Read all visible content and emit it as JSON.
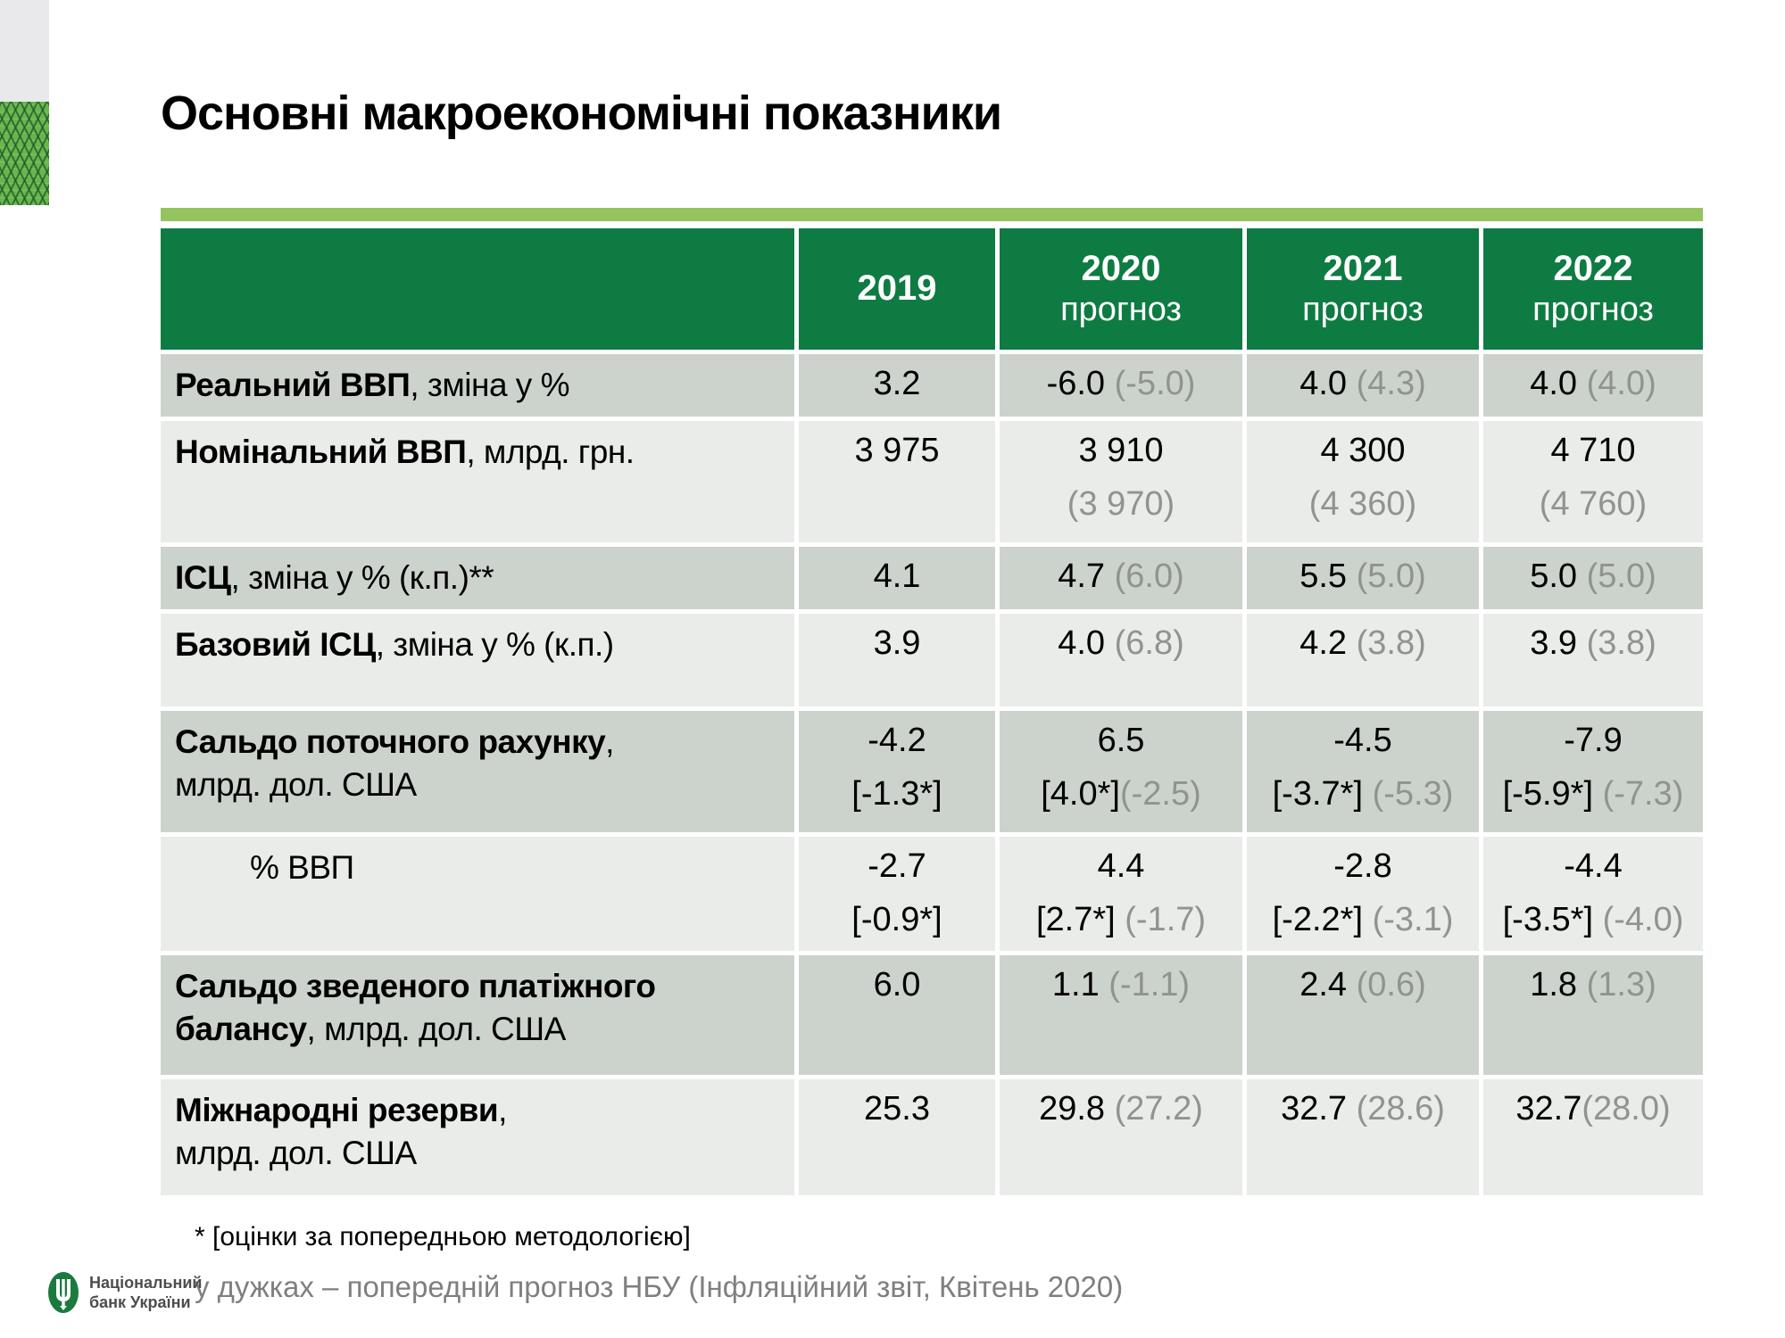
{
  "title": "Основні макроекономічні показники",
  "colors": {
    "header_bg": "#0e7b43",
    "accent_bar": "#95c45f",
    "row_dark": "#ccd3cc",
    "row_light": "#e9ece8",
    "muted_value": "#8f948f",
    "footnote_gray": "#7f7f7f",
    "logo_green": "#1b7a3e"
  },
  "table": {
    "columns": [
      {
        "year": "",
        "sub": ""
      },
      {
        "year": "2019",
        "sub": ""
      },
      {
        "year": "2020",
        "sub": "прогноз"
      },
      {
        "year": "2021",
        "sub": "прогноз"
      },
      {
        "year": "2022",
        "sub": "прогноз"
      }
    ],
    "rows": [
      {
        "indent": false,
        "label": [
          [
            {
              "t": "Реальний ВВП",
              "f": "b"
            },
            {
              "t": ", зміна у %",
              "f": "r"
            }
          ]
        ],
        "cells": [
          {
            "lines": [
              [
                {
                  "t": "3.2",
                  "f": "r"
                }
              ]
            ]
          },
          {
            "lines": [
              [
                {
                  "t": "-6.0 ",
                  "f": "r"
                },
                {
                  "t": "(-5.0)",
                  "f": "g"
                }
              ]
            ]
          },
          {
            "lines": [
              [
                {
                  "t": "4.0 ",
                  "f": "r"
                },
                {
                  "t": "(4.3)",
                  "f": "g"
                }
              ]
            ]
          },
          {
            "lines": [
              [
                {
                  "t": "4.0 ",
                  "f": "r"
                },
                {
                  "t": "(4.0)",
                  "f": "g"
                }
              ]
            ]
          }
        ]
      },
      {
        "indent": false,
        "label": [
          [
            {
              "t": "Номінальний ВВП",
              "f": "b"
            },
            {
              "t": ", млрд. грн.",
              "f": "r"
            }
          ]
        ],
        "cells": [
          {
            "lines": [
              [
                {
                  "t": "3 975",
                  "f": "r"
                }
              ]
            ]
          },
          {
            "lines": [
              [
                {
                  "t": "3 910",
                  "f": "r"
                }
              ],
              [
                {
                  "t": "(3 970)",
                  "f": "g"
                }
              ]
            ]
          },
          {
            "lines": [
              [
                {
                  "t": "4 300",
                  "f": "r"
                }
              ],
              [
                {
                  "t": "(4 360)",
                  "f": "g"
                }
              ]
            ]
          },
          {
            "lines": [
              [
                {
                  "t": "4 710",
                  "f": "r"
                }
              ],
              [
                {
                  "t": "(4 760)",
                  "f": "g"
                }
              ]
            ]
          }
        ]
      },
      {
        "indent": false,
        "label": [
          [
            {
              "t": "ІСЦ",
              "f": "b"
            },
            {
              "t": ", зміна у % (к.п.)**",
              "f": "r"
            }
          ]
        ],
        "cells": [
          {
            "lines": [
              [
                {
                  "t": "4.1",
                  "f": "r"
                }
              ]
            ]
          },
          {
            "lines": [
              [
                {
                  "t": "4.7 ",
                  "f": "r"
                },
                {
                  "t": "(6.0)",
                  "f": "g"
                }
              ]
            ]
          },
          {
            "lines": [
              [
                {
                  "t": "5.5 ",
                  "f": "r"
                },
                {
                  "t": "(5.0)",
                  "f": "g"
                }
              ]
            ]
          },
          {
            "lines": [
              [
                {
                  "t": "5.0 ",
                  "f": "r"
                },
                {
                  "t": "(5.0)",
                  "f": "g"
                }
              ]
            ]
          }
        ]
      },
      {
        "indent": false,
        "label": [
          [
            {
              "t": "Базовий ІСЦ",
              "f": "b"
            },
            {
              "t": ", зміна у % (к.п.)",
              "f": "r"
            }
          ]
        ],
        "cells": [
          {
            "lines": [
              [
                {
                  "t": "3.9",
                  "f": "r"
                }
              ]
            ]
          },
          {
            "lines": [
              [
                {
                  "t": "4.0 ",
                  "f": "r"
                },
                {
                  "t": "(6.8)",
                  "f": "g"
                }
              ]
            ]
          },
          {
            "lines": [
              [
                {
                  "t": "4.2 ",
                  "f": "r"
                },
                {
                  "t": "(3.8)",
                  "f": "g"
                }
              ]
            ]
          },
          {
            "lines": [
              [
                {
                  "t": "3.9 ",
                  "f": "r"
                },
                {
                  "t": "(3.8)",
                  "f": "g"
                }
              ]
            ]
          }
        ]
      },
      {
        "indent": false,
        "label": [
          [
            {
              "t": "Сальдо поточного рахунку",
              "f": "b"
            },
            {
              "t": ",",
              "f": "r"
            }
          ],
          [
            {
              "t": "млрд. дол. США",
              "f": "r"
            }
          ]
        ],
        "cells": [
          {
            "lines": [
              [
                {
                  "t": "-4.2",
                  "f": "r"
                }
              ],
              [
                {
                  "t": "[-1.3*]",
                  "f": "r"
                }
              ]
            ]
          },
          {
            "lines": [
              [
                {
                  "t": "6.5",
                  "f": "r"
                }
              ],
              [
                {
                  "t": "[4.0*]",
                  "f": "r"
                },
                {
                  "t": "(-2.5)",
                  "f": "g"
                }
              ]
            ]
          },
          {
            "lines": [
              [
                {
                  "t": "-4.5",
                  "f": "r"
                }
              ],
              [
                {
                  "t": "[-3.7*] ",
                  "f": "r"
                },
                {
                  "t": "(-5.3)",
                  "f": "g"
                }
              ]
            ]
          },
          {
            "lines": [
              [
                {
                  "t": "-7.9",
                  "f": "r"
                }
              ],
              [
                {
                  "t": "[-5.9*] ",
                  "f": "r"
                },
                {
                  "t": "(-7.3)",
                  "f": "g"
                }
              ]
            ]
          }
        ]
      },
      {
        "indent": true,
        "label": [
          [
            {
              "t": "% ВВП",
              "f": "r"
            }
          ]
        ],
        "cells": [
          {
            "lines": [
              [
                {
                  "t": "-2.7",
                  "f": "r"
                }
              ],
              [
                {
                  "t": "[-0.9*]",
                  "f": "r"
                }
              ]
            ]
          },
          {
            "lines": [
              [
                {
                  "t": "4.4",
                  "f": "r"
                }
              ],
              [
                {
                  "t": "[2.7*] ",
                  "f": "r"
                },
                {
                  "t": "(-1.7)",
                  "f": "g"
                }
              ]
            ]
          },
          {
            "lines": [
              [
                {
                  "t": "-2.8",
                  "f": "r"
                }
              ],
              [
                {
                  "t": "[-2.2*] ",
                  "f": "r"
                },
                {
                  "t": "(-3.1)",
                  "f": "g"
                }
              ]
            ]
          },
          {
            "lines": [
              [
                {
                  "t": "-4.4",
                  "f": "r"
                }
              ],
              [
                {
                  "t": "[-3.5*] ",
                  "f": "r"
                },
                {
                  "t": "(-4.0)",
                  "f": "g"
                }
              ]
            ]
          }
        ]
      },
      {
        "indent": false,
        "label": [
          [
            {
              "t": "Сальдо зведеного платіжного",
              "f": "b"
            }
          ],
          [
            {
              "t": "балансу",
              "f": "b"
            },
            {
              "t": ", млрд. дол. США",
              "f": "r"
            }
          ]
        ],
        "cells": [
          {
            "lines": [
              [
                {
                  "t": "6.0",
                  "f": "r"
                }
              ]
            ]
          },
          {
            "lines": [
              [
                {
                  "t": "1.1 ",
                  "f": "r"
                },
                {
                  "t": "(-1.1)",
                  "f": "g"
                }
              ]
            ]
          },
          {
            "lines": [
              [
                {
                  "t": "2.4 ",
                  "f": "r"
                },
                {
                  "t": "(0.6)",
                  "f": "g"
                }
              ]
            ]
          },
          {
            "lines": [
              [
                {
                  "t": "1.8 ",
                  "f": "r"
                },
                {
                  "t": "(1.3)",
                  "f": "g"
                }
              ]
            ]
          }
        ]
      },
      {
        "indent": false,
        "label": [
          [
            {
              "t": "Міжнародні резерви",
              "f": "b"
            },
            {
              "t": ",",
              "f": "r"
            }
          ],
          [
            {
              "t": "млрд. дол. США",
              "f": "r"
            }
          ]
        ],
        "cells": [
          {
            "lines": [
              [
                {
                  "t": "25.3",
                  "f": "r"
                }
              ]
            ]
          },
          {
            "lines": [
              [
                {
                  "t": "29.8 ",
                  "f": "r"
                },
                {
                  "t": "(27.2)",
                  "f": "g"
                }
              ]
            ]
          },
          {
            "lines": [
              [
                {
                  "t": "32.7 ",
                  "f": "r"
                },
                {
                  "t": "(28.6)",
                  "f": "g"
                }
              ]
            ]
          },
          {
            "lines": [
              [
                {
                  "t": "32.7",
                  "f": "r"
                },
                {
                  "t": "(28.0)",
                  "f": "g"
                }
              ]
            ]
          }
        ]
      }
    ]
  },
  "footnotes": {
    "line1": "* [оцінки за попередньою методологією]",
    "line2": "у дужках – попередній прогноз НБУ (Інфляційний звіт, Квітень 2020)"
  },
  "logo": {
    "line1": "Національний",
    "line2": "банк України"
  }
}
